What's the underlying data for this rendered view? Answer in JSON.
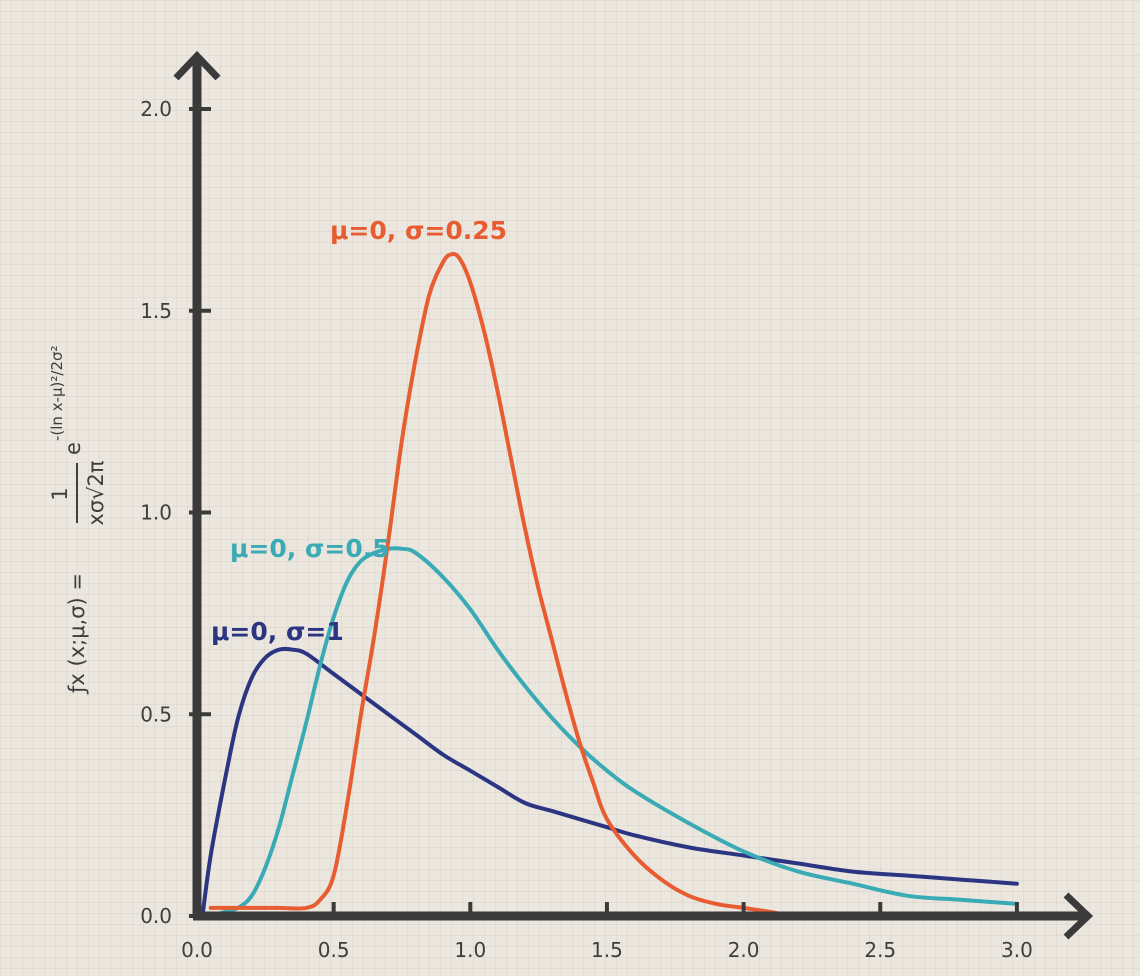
{
  "chart_data": {
    "type": "line",
    "title": "",
    "xlabel": "",
    "ylabel": {
      "prefix": "ƒx (x;μ,σ) =",
      "numerator": "1",
      "denominator": "xσ√2π",
      "exp_base": "e",
      "exponent": "-(ln x-μ)²/2σ²"
    },
    "xlim": [
      0,
      3.2
    ],
    "ylim": [
      0,
      2.2
    ],
    "x_ticks": [
      0,
      0.5,
      1,
      1.5,
      2,
      2.5,
      3
    ],
    "x_tick_labels": [
      "0.0",
      "0.5",
      "1.0",
      "1.5",
      "2.0",
      "2.5",
      "3.0"
    ],
    "y_ticks": [
      0,
      0.5,
      1,
      1.5,
      2
    ],
    "y_tick_labels": [
      "0.0",
      "0.5",
      "1.0",
      "1.5",
      "2.0"
    ],
    "grid": false,
    "series": [
      {
        "name": "μ=0, σ=1",
        "color": "#2c3582",
        "x": [
          0.02,
          0.05,
          0.1,
          0.15,
          0.2,
          0.25,
          0.3,
          0.35,
          0.4,
          0.5,
          0.6,
          0.7,
          0.8,
          0.9,
          1.0,
          1.1,
          1.2,
          1.3,
          1.4,
          1.5,
          1.6,
          1.8,
          2.0,
          2.2,
          2.4,
          2.6,
          2.8,
          3.0
        ],
        "y": [
          0.0,
          0.15,
          0.33,
          0.49,
          0.59,
          0.64,
          0.66,
          0.66,
          0.65,
          0.6,
          0.55,
          0.5,
          0.45,
          0.4,
          0.36,
          0.32,
          0.28,
          0.26,
          0.24,
          0.22,
          0.2,
          0.17,
          0.15,
          0.13,
          0.11,
          0.1,
          0.09,
          0.08
        ]
      },
      {
        "name": "μ=0, σ=0.5",
        "color": "#3aaab5",
        "x": [
          0.05,
          0.1,
          0.15,
          0.2,
          0.25,
          0.3,
          0.35,
          0.4,
          0.45,
          0.5,
          0.55,
          0.6,
          0.65,
          0.7,
          0.75,
          0.8,
          0.9,
          1.0,
          1.1,
          1.2,
          1.3,
          1.4,
          1.5,
          1.6,
          1.8,
          2.0,
          2.2,
          2.4,
          2.6,
          2.8,
          3.0
        ],
        "y": [
          0.0,
          0.01,
          0.02,
          0.05,
          0.12,
          0.22,
          0.35,
          0.48,
          0.62,
          0.74,
          0.83,
          0.88,
          0.9,
          0.91,
          0.91,
          0.9,
          0.84,
          0.76,
          0.66,
          0.57,
          0.49,
          0.42,
          0.36,
          0.31,
          0.23,
          0.16,
          0.11,
          0.08,
          0.05,
          0.04,
          0.03
        ]
      },
      {
        "name": "μ=0, σ=0.25",
        "color": "#e85c32",
        "x": [
          0.05,
          0.1,
          0.2,
          0.3,
          0.4,
          0.45,
          0.5,
          0.55,
          0.6,
          0.65,
          0.7,
          0.75,
          0.8,
          0.85,
          0.9,
          0.93,
          0.96,
          1.0,
          1.05,
          1.1,
          1.15,
          1.2,
          1.25,
          1.3,
          1.35,
          1.4,
          1.45,
          1.5,
          1.6,
          1.7,
          1.8,
          1.9,
          2.0,
          2.1,
          2.2,
          2.5,
          3.0
        ],
        "y": [
          0.02,
          0.02,
          0.02,
          0.02,
          0.02,
          0.04,
          0.1,
          0.28,
          0.5,
          0.7,
          0.93,
          1.18,
          1.38,
          1.54,
          1.62,
          1.64,
          1.63,
          1.57,
          1.45,
          1.3,
          1.13,
          0.96,
          0.81,
          0.68,
          0.55,
          0.43,
          0.33,
          0.24,
          0.15,
          0.09,
          0.05,
          0.03,
          0.02,
          0.01,
          0.0,
          0.0,
          0.0
        ]
      }
    ]
  }
}
